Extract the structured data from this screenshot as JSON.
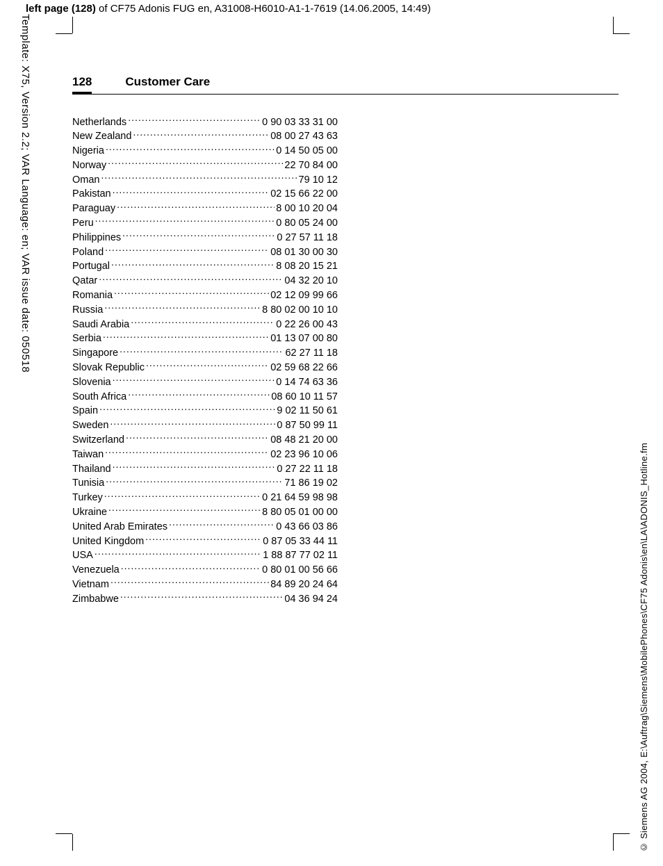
{
  "top_header": {
    "prefix": "left page (128)",
    "rest": " of CF75 Adonis FUG en, A31008-H6010-A1-1-7619 (14.06.2005, 14:49)"
  },
  "left_sidebar": "Template: X75, Version 2.2; VAR Language: en; VAR issue date: 050518",
  "right_sidebar": "© Siemens AG 2004, E:\\Auftrag\\Siemens\\MobilePhones\\CF75 Adonis\\en\\LA\\ADONIS_Hotline.fm",
  "page_number": "128",
  "section_title": "Customer Care",
  "entries": [
    {
      "country": "Netherlands",
      "phone": "0 90 03 33 31 00"
    },
    {
      "country": "New Zealand",
      "phone": "08 00 27 43 63"
    },
    {
      "country": "Nigeria",
      "phone": "0 14 50 05 00"
    },
    {
      "country": "Norway",
      "phone": "22 70 84 00"
    },
    {
      "country": "Oman",
      "phone": " 79 10 12"
    },
    {
      "country": "Pakistan",
      "phone": "02 15 66 22 00"
    },
    {
      "country": "Paraguay",
      "phone": "8 00 10 20 04"
    },
    {
      "country": "Peru",
      "phone": "0 80 05 24 00"
    },
    {
      "country": "Philippines",
      "phone": "0 27 57 11 18"
    },
    {
      "country": "Poland",
      "phone": "08 01 30 00 30"
    },
    {
      "country": "Portugal",
      "phone": "8 08 20 15 21"
    },
    {
      "country": "Qatar",
      "phone": "04 32 20 10"
    },
    {
      "country": "Romania",
      "phone": "02 12 09 99 66"
    },
    {
      "country": "Russia",
      "phone": "8 80 02 00 10 10"
    },
    {
      "country": "Saudi Arabia",
      "phone": "0 22 26 00 43"
    },
    {
      "country": "Serbia",
      "phone": "01 13 07 00 80"
    },
    {
      "country": "Singapore",
      "phone": "62 27 11 18"
    },
    {
      "country": "Slovak Republic",
      "phone": "02 59 68 22 66"
    },
    {
      "country": "Slovenia",
      "phone": "0 14 74 63 36"
    },
    {
      "country": "South Africa",
      "phone": "08 60 10 11 57"
    },
    {
      "country": "Spain",
      "phone": "9 02 11 50 61"
    },
    {
      "country": "Sweden",
      "phone": "0 87 50 99 11"
    },
    {
      "country": "Switzerland",
      "phone": "08 48 21 20 00"
    },
    {
      "country": "Taiwan",
      "phone": "02 23 96 10 06"
    },
    {
      "country": "Thailand",
      "phone": "0 27 22 11 18"
    },
    {
      "country": "Tunisia",
      "phone": "71 86 19 02"
    },
    {
      "country": "Turkey",
      "phone": "0 21 64 59 98 98"
    },
    {
      "country": "Ukraine",
      "phone": "8 80 05 01 00 00"
    },
    {
      "country": "United Arab Emirates",
      "phone": "0 43 66 03 86"
    },
    {
      "country": "United Kingdom",
      "phone": "0 87 05 33 44 11"
    },
    {
      "country": "USA",
      "phone": "1 88 87 77 02 11"
    },
    {
      "country": "Venezuela",
      "phone": "0 80 01 00 56 66"
    },
    {
      "country": "Vietnam",
      "phone": "84 89 20 24 64"
    },
    {
      "country": "Zimbabwe",
      "phone": "04 36 94 24"
    }
  ]
}
